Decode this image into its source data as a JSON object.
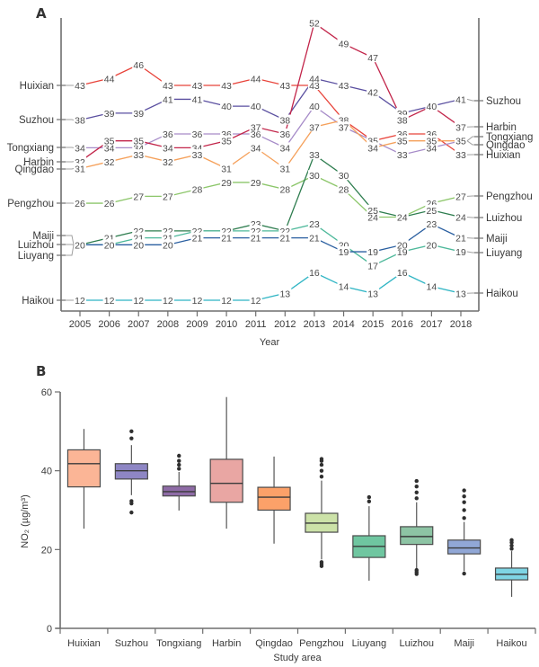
{
  "chart_data": [
    {
      "panel": "A",
      "type": "line",
      "title": "",
      "xlabel": "Year",
      "ylabel": "",
      "x": [
        2005,
        2006,
        2007,
        2008,
        2009,
        2010,
        2011,
        2012,
        2013,
        2014,
        2015,
        2016,
        2017,
        2018
      ],
      "grid": false,
      "series": [
        {
          "name": "Huixian",
          "color": "#E8433A",
          "values": [
            43,
            44,
            46,
            43,
            43,
            43,
            44,
            43,
            43,
            38,
            35,
            36,
            36,
            33
          ]
        },
        {
          "name": "Suzhou",
          "color": "#5A4FA0",
          "values": [
            38,
            39,
            39,
            41,
            41,
            40,
            40,
            38,
            44,
            43,
            42,
            39,
            40,
            41
          ]
        },
        {
          "name": "Tongxiang",
          "color": "#A68BC8",
          "values": [
            34,
            34,
            34,
            36,
            36,
            36,
            36,
            34,
            40,
            37,
            35,
            33,
            34,
            35
          ]
        },
        {
          "name": "Harbin",
          "color": "#C2254A",
          "values": [
            32,
            35,
            35,
            34,
            34,
            35,
            37,
            36,
            52,
            49,
            47,
            38,
            40,
            37
          ]
        },
        {
          "name": "Qingdao",
          "color": "#F5A05A",
          "values": [
            31,
            32,
            33,
            32,
            33,
            31,
            34,
            31,
            37,
            38,
            34,
            35,
            35,
            35
          ]
        },
        {
          "name": "Pengzhou",
          "color": "#8CC66A",
          "values": [
            26,
            26,
            27,
            27,
            28,
            29,
            29,
            28,
            30,
            28,
            24,
            24,
            26,
            27
          ]
        },
        {
          "name": "Luizhou",
          "color": "#2E7D4F",
          "values": [
            20,
            21,
            22,
            22,
            22,
            22,
            23,
            22,
            33,
            30,
            25,
            24,
            25,
            24
          ]
        },
        {
          "name": "Liuyang",
          "color": "#4DB89A",
          "values": [
            20,
            20,
            21,
            21,
            22,
            22,
            22,
            22,
            23,
            20,
            17,
            19,
            20,
            19
          ]
        },
        {
          "name": "Maiji",
          "color": "#2A5FA0",
          "values": [
            20,
            20,
            20,
            20,
            21,
            21,
            21,
            21,
            21,
            19,
            19,
            20,
            23,
            21
          ]
        },
        {
          "name": "Haikou",
          "color": "#2FB5C4",
          "values": [
            12,
            12,
            12,
            12,
            12,
            12,
            12,
            13,
            16,
            14,
            13,
            16,
            14,
            13
          ]
        }
      ],
      "left_labels_order": [
        "Huixian",
        "Suzhou",
        "Tongxiang",
        "Harbin",
        "Qingdao",
        "Pengzhou",
        "Maiji",
        "Luizhou",
        "Liuyang",
        "Haikou"
      ],
      "right_labels_order": [
        "Suzhou",
        "Harbin",
        "Tongxiang",
        "Qingdao",
        "Huixian",
        "Pengzhou",
        "Luizhou",
        "Maiji",
        "Liuyang",
        "Haikou"
      ]
    },
    {
      "panel": "B",
      "type": "box",
      "title": "",
      "xlabel": "Study area",
      "ylabel": "NO₂ (µg/m³)",
      "ylim": [
        0,
        60
      ],
      "yticks": [
        0,
        20,
        40,
        60
      ],
      "grid": false,
      "categories": [
        "Huixian",
        "Suzhou",
        "Tongxiang",
        "Harbin",
        "Qingdao",
        "Pengzhou",
        "Liuyang",
        "Luizhou",
        "Maiji",
        "Haikou"
      ],
      "boxes": [
        {
          "name": "Huixian",
          "color": "#FBB596",
          "whisker_low": 25.3,
          "q1": 35.9,
          "median": 41.8,
          "q3": 45.3,
          "whisker_high": 50.6,
          "outliers_low": [],
          "outliers_high": []
        },
        {
          "name": "Suzhou",
          "color": "#8E86C4",
          "whisker_low": 33.8,
          "q1": 37.9,
          "median": 40.0,
          "q3": 41.8,
          "whisker_high": 46.5,
          "outliers_low": [
            29.4,
            31.7,
            32.3
          ],
          "outliers_high": [
            48.2,
            50.0
          ]
        },
        {
          "name": "Tongxiang",
          "color": "#8E6BA6",
          "whisker_low": 29.9,
          "q1": 33.6,
          "median": 34.7,
          "q3": 36.1,
          "whisker_high": 39.7,
          "outliers_low": [],
          "outliers_high": [
            40.5,
            41.5,
            42.5,
            43.8
          ]
        },
        {
          "name": "Harbin",
          "color": "#E9A6A3",
          "whisker_low": 25.3,
          "q1": 32.0,
          "median": 36.8,
          "q3": 42.9,
          "whisker_high": 58.7,
          "outliers_low": [],
          "outliers_high": []
        },
        {
          "name": "Qingdao",
          "color": "#FCA169",
          "whisker_low": 21.5,
          "q1": 30.0,
          "median": 33.3,
          "q3": 35.8,
          "whisker_high": 43.6,
          "outliers_low": [],
          "outliers_high": []
        },
        {
          "name": "Pengzhou",
          "color": "#CCE2A8",
          "whisker_low": 17.5,
          "q1": 24.4,
          "median": 26.7,
          "q3": 29.2,
          "whisker_high": 37.5,
          "outliers_low": [
            15.8,
            16.3,
            16.8
          ],
          "outliers_high": [
            38.5,
            40.0,
            41.5,
            42.5,
            43.0
          ]
        },
        {
          "name": "Liuyang",
          "color": "#6FC6A0",
          "whisker_low": 12.1,
          "q1": 18.0,
          "median": 20.8,
          "q3": 23.5,
          "whisker_high": 31.0,
          "outliers_low": [],
          "outliers_high": [
            32.2,
            33.3
          ]
        },
        {
          "name": "Luizhou",
          "color": "#8DC4A4",
          "whisker_low": 15.0,
          "q1": 21.3,
          "median": 23.3,
          "q3": 25.8,
          "whisker_high": 32.0,
          "outliers_low": [
            13.8,
            14.3,
            14.8
          ],
          "outliers_high": [
            33.0,
            34.5,
            36.0,
            37.4
          ]
        },
        {
          "name": "Maiji",
          "color": "#91A7D6",
          "whisker_low": 14.5,
          "q1": 18.9,
          "median": 20.4,
          "q3": 22.4,
          "whisker_high": 27.0,
          "outliers_low": [
            13.9
          ],
          "outliers_high": [
            28.0,
            30.0,
            32.0,
            33.5,
            35.0
          ]
        },
        {
          "name": "Haikou",
          "color": "#7FD5E4",
          "whisker_low": 8.0,
          "q1": 12.3,
          "median": 13.7,
          "q3": 15.3,
          "whisker_high": 19.6,
          "outliers_low": [],
          "outliers_high": [
            20.2,
            21.0,
            21.8,
            22.4
          ]
        }
      ]
    }
  ],
  "panels": {
    "a_label": "A",
    "b_label": "B",
    "a_xlabel": "Year",
    "b_xlabel": "Study area",
    "b_ylabel": "NO₂ (µg/m³)"
  }
}
